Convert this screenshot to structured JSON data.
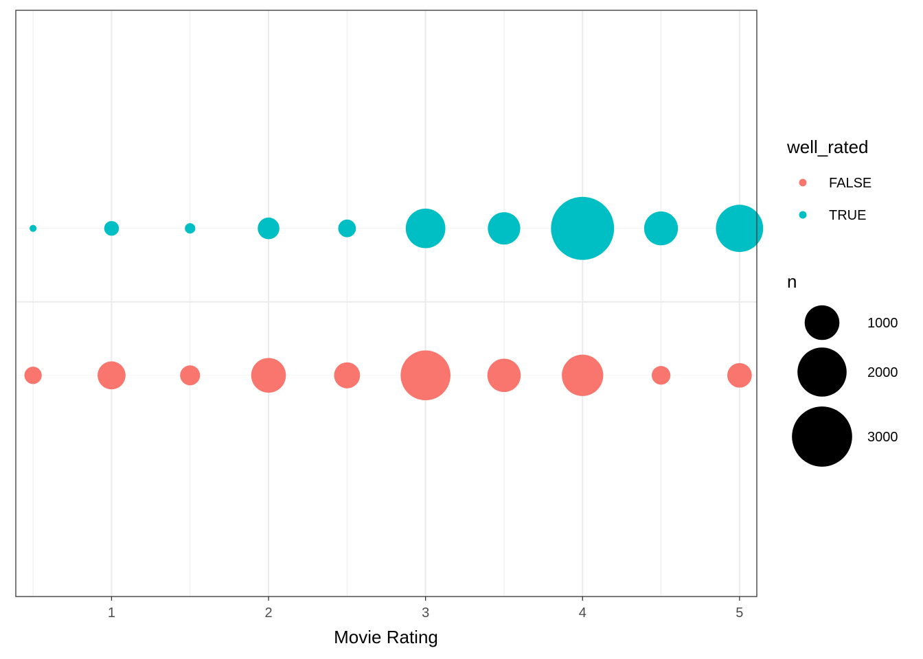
{
  "chart_data": {
    "type": "scatter",
    "xlabel": "Movie Rating",
    "ylabel": "",
    "xlim": [
      0.39,
      5.11
    ],
    "x_ticks": [
      "1",
      "2",
      "3",
      "4",
      "5"
    ],
    "y_categories": [
      "FALSE",
      "TRUE"
    ],
    "grid": true,
    "legend_position": "right",
    "series": [
      {
        "name": "FALSE",
        "color": "#F8766D",
        "x": [
          0.5,
          1,
          1.5,
          2,
          2.5,
          3,
          3.5,
          4,
          4.5,
          5
        ],
        "n": [
          250,
          650,
          330,
          1000,
          560,
          2060,
          920,
          1420,
          290,
          500
        ]
      },
      {
        "name": "TRUE",
        "color": "#00BFC4",
        "x": [
          0.5,
          1,
          1.5,
          2,
          2.5,
          3,
          3.5,
          4,
          4.5,
          5
        ],
        "n": [
          40,
          180,
          90,
          390,
          260,
          1300,
          870,
          3300,
          950,
          1850
        ]
      }
    ],
    "legends": {
      "color": {
        "title": "well_rated",
        "items": [
          "FALSE",
          "TRUE"
        ]
      },
      "size": {
        "title": "n",
        "items": [
          {
            "label": "1000",
            "value": 1000
          },
          {
            "label": "2000",
            "value": 2000
          },
          {
            "label": "3000",
            "value": 3000
          }
        ]
      }
    }
  }
}
